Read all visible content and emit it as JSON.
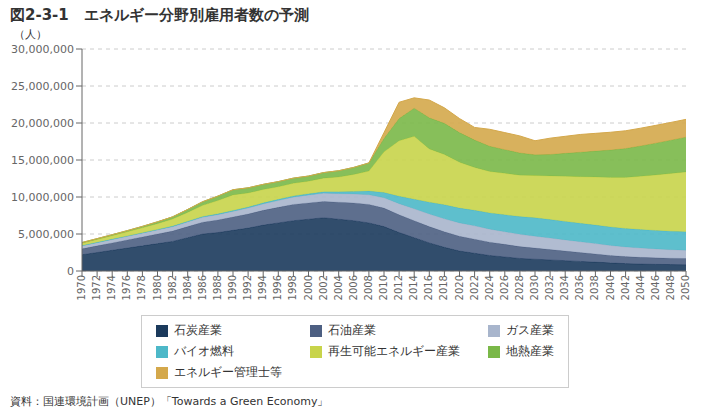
{
  "chart_data": {
    "type": "area",
    "title": "図2-3-1　エネルギー分野別雇用者数の予測",
    "ylabel": "（人）",
    "annotations": [
      "資料：国連環境計画（UNEP）「Towards a Green Economy」"
    ],
    "stacked": true,
    "grid": true,
    "legend": "bottom",
    "x": [
      1970,
      1972,
      1974,
      1976,
      1978,
      1980,
      1982,
      1984,
      1986,
      1988,
      1990,
      1992,
      1994,
      1996,
      1998,
      2000,
      2002,
      2004,
      2006,
      2008,
      2010,
      2012,
      2014,
      2016,
      2018,
      2020,
      2022,
      2024,
      2026,
      2028,
      2030,
      2032,
      2034,
      2036,
      2038,
      2040,
      2042,
      2044,
      2046,
      2048,
      2050
    ],
    "xlim": [
      1970,
      2050
    ],
    "xticks": [
      1970,
      1972,
      1974,
      1976,
      1978,
      1980,
      1982,
      1984,
      1986,
      1988,
      1990,
      1992,
      1994,
      1996,
      1998,
      2000,
      2002,
      2004,
      2006,
      2008,
      2010,
      2012,
      2014,
      2016,
      2018,
      2020,
      2022,
      2024,
      2026,
      2028,
      2030,
      2032,
      2034,
      2036,
      2038,
      2040,
      2042,
      2044,
      2046,
      2048,
      2050
    ],
    "ylim": [
      0,
      30000000
    ],
    "yticks": [
      0,
      {
        "value": 5000000,
        "label": "5,000,000"
      },
      {
        "value": 10000000,
        "label": "10,000,000"
      },
      {
        "value": 15000000,
        "label": "15,000,000"
      },
      {
        "value": 20000000,
        "label": "20,000,000"
      },
      {
        "value": 25000000,
        "label": "25,000,000"
      },
      {
        "value": 30000000,
        "label": "30,000,000"
      }
    ],
    "series": [
      {
        "name": "石炭産業",
        "color": "#1b3a5c",
        "values": [
          2200000,
          2500000,
          2800000,
          3100000,
          3400000,
          3700000,
          4000000,
          4500000,
          5000000,
          5200000,
          5500000,
          5800000,
          6200000,
          6500000,
          6800000,
          7000000,
          7200000,
          7000000,
          6800000,
          6500000,
          6000000,
          5200000,
          4500000,
          3800000,
          3200000,
          2700000,
          2400000,
          2100000,
          1900000,
          1700000,
          1600000,
          1500000,
          1400000,
          1300000,
          1200000,
          1100000,
          1000000,
          950000,
          900000,
          870000,
          850000
        ]
      },
      {
        "name": "石油産業",
        "color": "#4d5f82",
        "values": [
          800000,
          900000,
          1000000,
          1100000,
          1200000,
          1300000,
          1400000,
          1500000,
          1600000,
          1700000,
          1800000,
          1900000,
          2000000,
          2100000,
          2200000,
          2200000,
          2200000,
          2300000,
          2400000,
          2500000,
          2500000,
          2400000,
          2300000,
          2200000,
          2100000,
          2000000,
          1900000,
          1800000,
          1700000,
          1600000,
          1500000,
          1400000,
          1300000,
          1200000,
          1100000,
          1000000,
          950000,
          900000,
          880000,
          860000,
          840000
        ]
      },
      {
        "name": "ガス産業",
        "color": "#a8b5cc",
        "values": [
          400000,
          420000,
          450000,
          480000,
          510000,
          540000,
          580000,
          620000,
          660000,
          700000,
          750000,
          800000,
          860000,
          920000,
          980000,
          1050000,
          1100000,
          1150000,
          1200000,
          1300000,
          1400000,
          1500000,
          1600000,
          1700000,
          1750000,
          1800000,
          1800000,
          1750000,
          1700000,
          1650000,
          1600000,
          1550000,
          1500000,
          1450000,
          1400000,
          1350000,
          1300000,
          1250000,
          1200000,
          1150000,
          1100000
        ]
      },
      {
        "name": "バイオ燃料",
        "color": "#4db8c8",
        "values": [
          50000,
          55000,
          60000,
          65000,
          70000,
          80000,
          90000,
          100000,
          110000,
          120000,
          130000,
          140000,
          150000,
          160000,
          170000,
          180000,
          200000,
          250000,
          350000,
          500000,
          700000,
          1000000,
          1300000,
          1600000,
          1900000,
          2000000,
          2100000,
          2200000,
          2300000,
          2400000,
          2500000,
          2500000,
          2500000,
          2500000,
          2500000,
          2500000,
          2500000,
          2500000,
          2500000,
          2500000,
          2500000
        ]
      },
      {
        "name": "再生可能エネルギー産業",
        "color": "#c8d44a",
        "values": [
          300000,
          380000,
          460000,
          550000,
          650000,
          780000,
          950000,
          1200000,
          1500000,
          1800000,
          2100000,
          1900000,
          1800000,
          1700000,
          1700000,
          1700000,
          1850000,
          2000000,
          2300000,
          2700000,
          5500000,
          7500000,
          8500000,
          7200000,
          6800000,
          6200000,
          5800000,
          5600000,
          5600000,
          5600000,
          5700000,
          5900000,
          6100000,
          6300000,
          6500000,
          6700000,
          6900000,
          7200000,
          7500000,
          7800000,
          8100000
        ]
      },
      {
        "name": "地熱産業",
        "color": "#7ab848",
        "values": [
          100000,
          120000,
          140000,
          160000,
          200000,
          250000,
          300000,
          400000,
          500000,
          600000,
          700000,
          700000,
          700000,
          700000,
          700000,
          700000,
          750000,
          850000,
          950000,
          1100000,
          1800000,
          3000000,
          3800000,
          4200000,
          4200000,
          4000000,
          3700000,
          3400000,
          3200000,
          3000000,
          2800000,
          2900000,
          3100000,
          3300000,
          3500000,
          3700000,
          3900000,
          4100000,
          4300000,
          4500000,
          4700000
        ]
      },
      {
        "name": "エネルギー管理士等",
        "color": "#d4a84b",
        "values": [
          0,
          0,
          0,
          0,
          0,
          0,
          0,
          0,
          0,
          0,
          0,
          0,
          0,
          0,
          0,
          0,
          0,
          0,
          0,
          0,
          800000,
          2200000,
          1400000,
          2400000,
          2100000,
          1900000,
          1700000,
          2300000,
          2300000,
          2300000,
          1900000,
          2200000,
          2300000,
          2400000,
          2400000,
          2400000,
          2400000,
          2400000,
          2400000,
          2400000,
          2400000
        ]
      }
    ]
  }
}
